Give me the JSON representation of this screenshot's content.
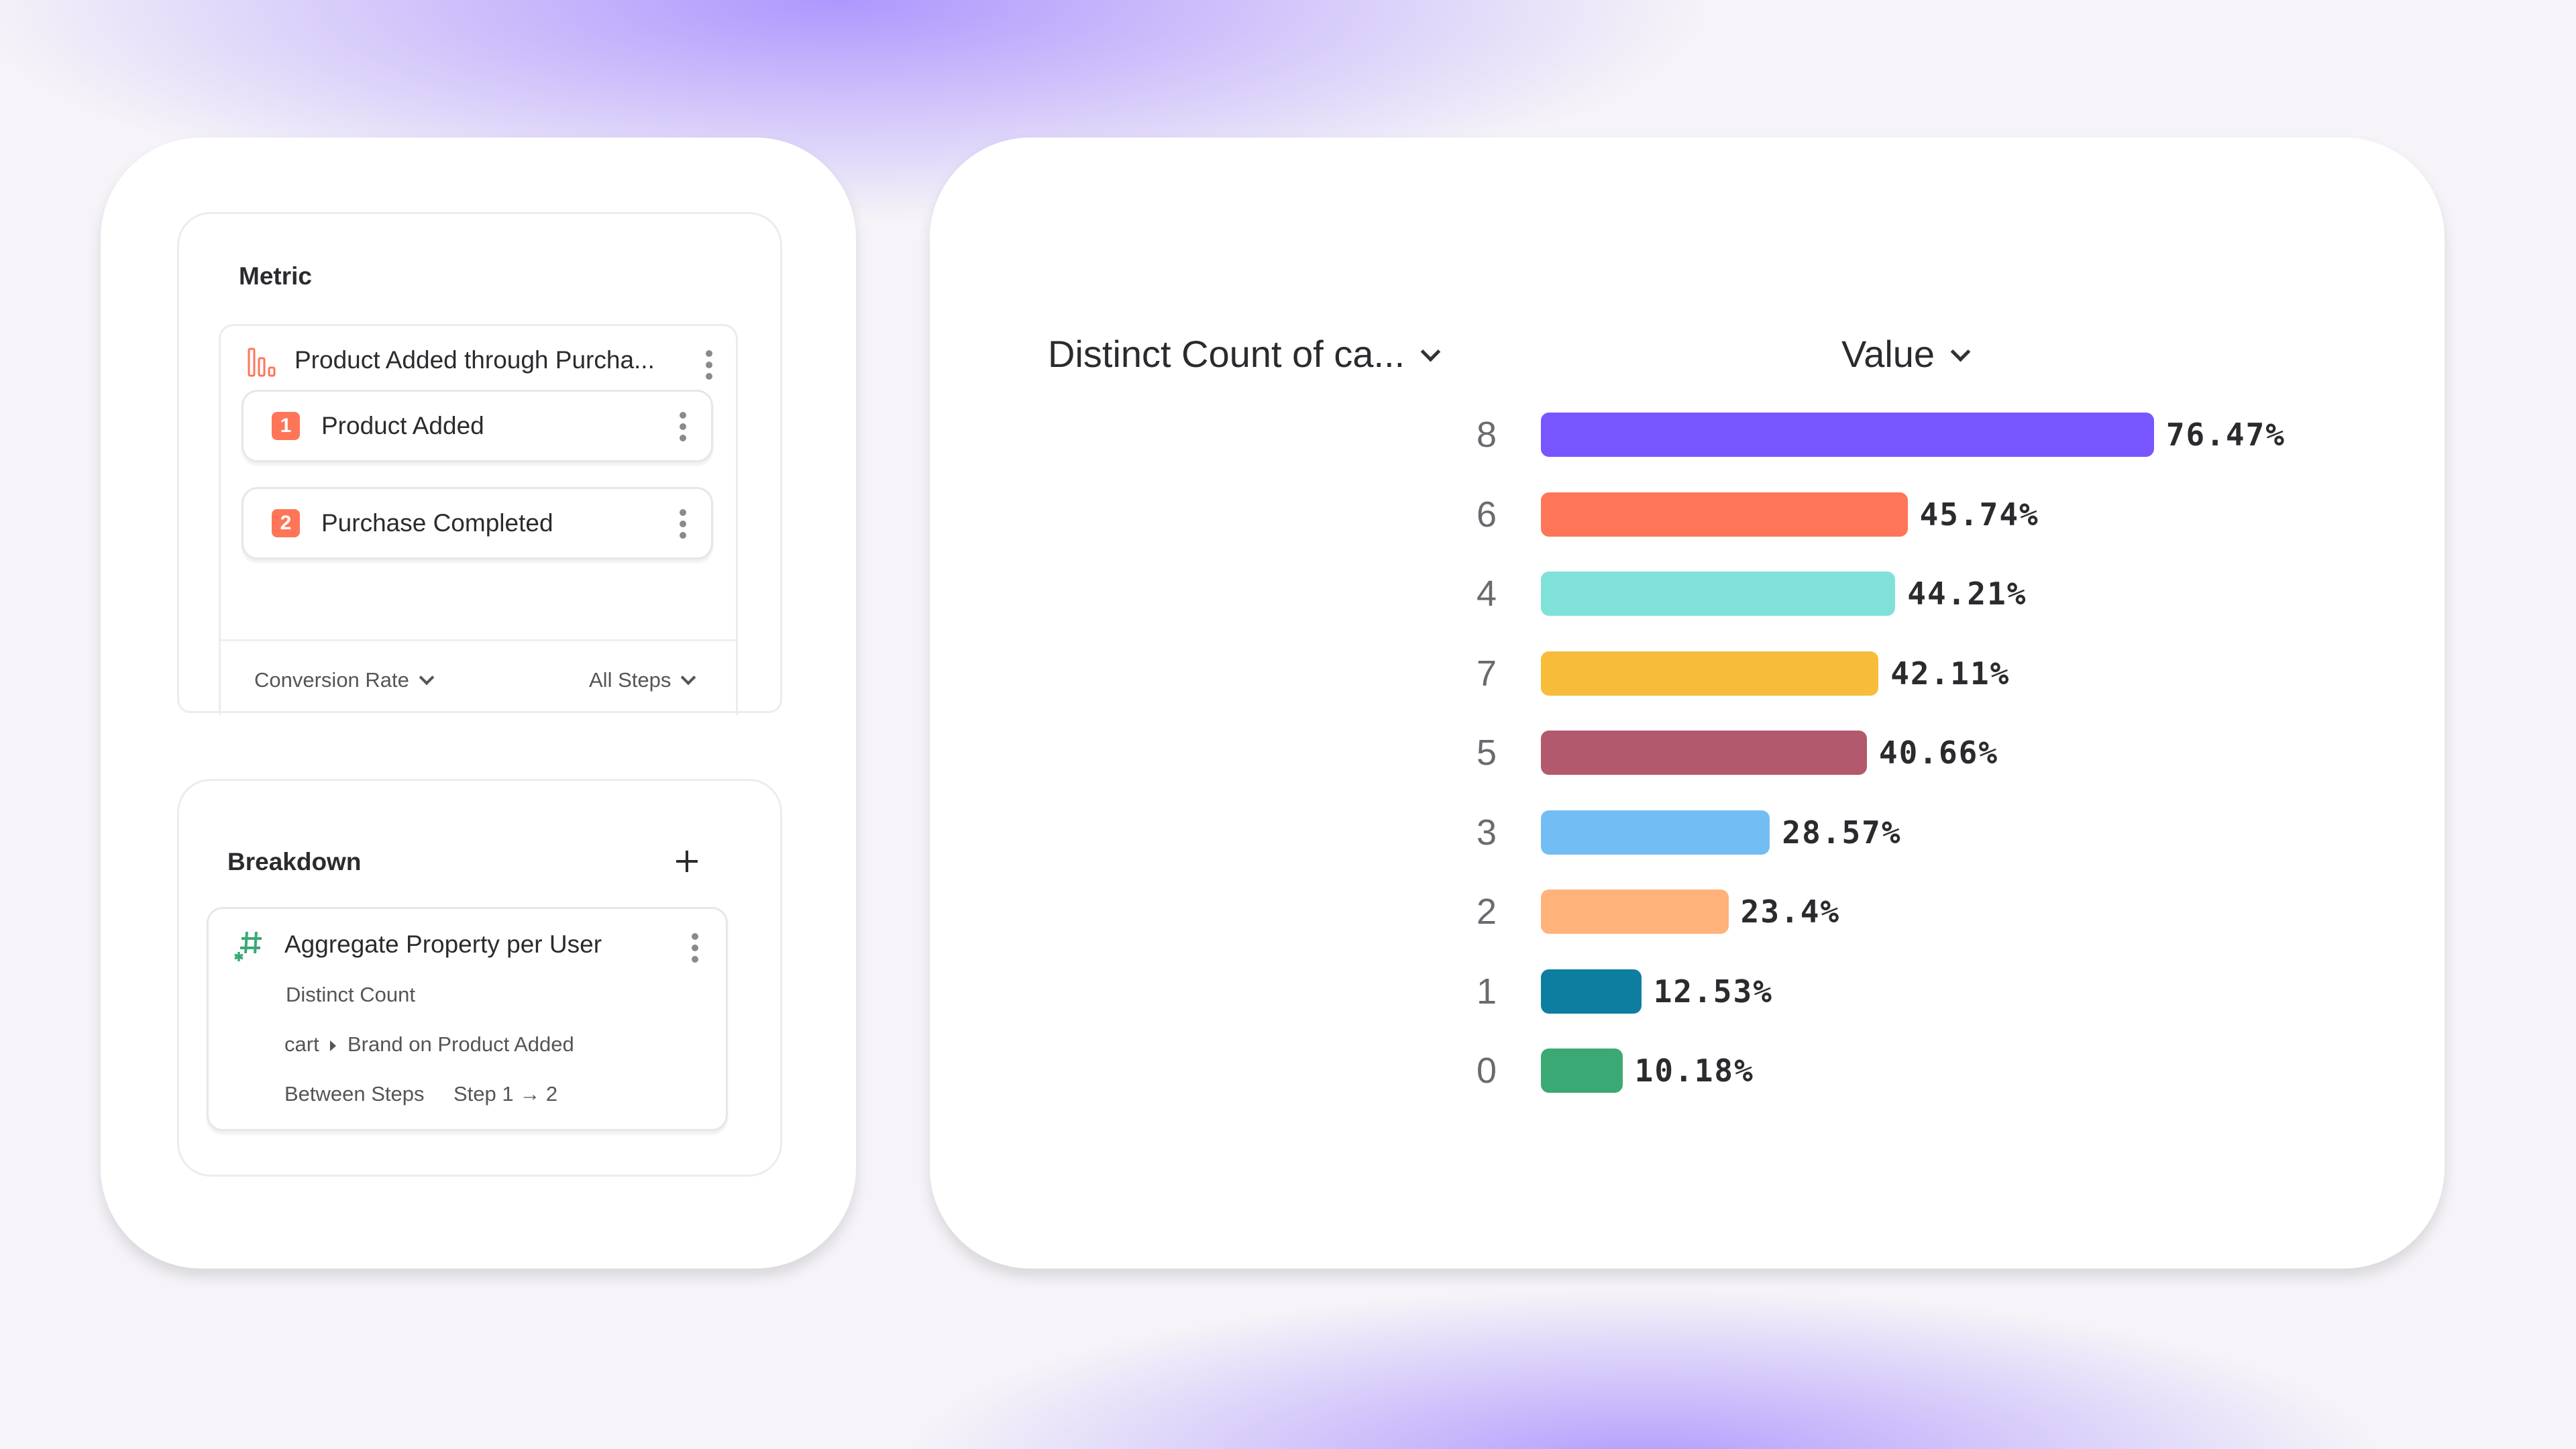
{
  "metric": {
    "title": "Metric",
    "funnel_name": "Product Added through Purcha...",
    "funnel_icon": "funnel-chart-icon",
    "steps": [
      {
        "number": "1",
        "label": "Product Added"
      },
      {
        "number": "2",
        "label": "Purchase Completed"
      }
    ],
    "measure_dropdown": "Conversion Rate",
    "steps_dropdown": "All Steps"
  },
  "breakdown": {
    "title": "Breakdown",
    "add_icon": "plus-icon",
    "item": {
      "icon": "hash-icon",
      "title": "Aggregate Property per User",
      "aggregation": "Distinct Count",
      "property_prefix": "cart",
      "property": "Brand on Product Added",
      "scope_label": "Between Steps",
      "scope_value": "Step 1 → 2"
    }
  },
  "chart_data": {
    "type": "bar",
    "orientation": "horizontal",
    "category_header": "Distinct Count of ca...",
    "value_header": "Value",
    "categories": [
      "8",
      "6",
      "4",
      "7",
      "5",
      "3",
      "2",
      "1",
      "0"
    ],
    "values": [
      76.47,
      45.74,
      44.21,
      42.11,
      40.66,
      28.57,
      23.4,
      12.53,
      10.18
    ],
    "value_labels": [
      "76.47%",
      "45.74%",
      "44.21%",
      "42.11%",
      "40.66%",
      "28.57%",
      "23.4%",
      "12.53%",
      "10.18%"
    ],
    "colors": [
      "#7856ff",
      "#ff7557",
      "#80e1d9",
      "#f8bc3b",
      "#b2596e",
      "#72bef4",
      "#ffb27a",
      "#0d7ea0",
      "#3ba974"
    ],
    "xlim": [
      0,
      100
    ],
    "grid": false
  }
}
